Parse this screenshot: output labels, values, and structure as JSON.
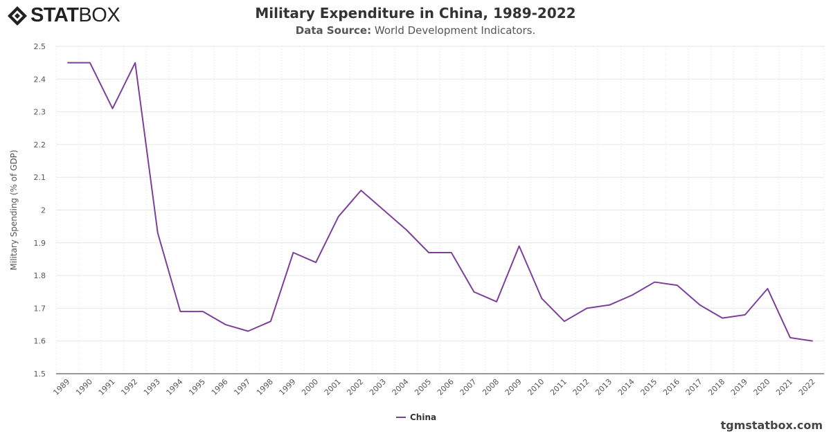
{
  "brand": {
    "logo_bold": "STAT",
    "logo_light": "BOX"
  },
  "header": {
    "title": "Military Expenditure in China, 1989-2022",
    "source_label": "Data Source:",
    "source_value": " World Development Indicators."
  },
  "footer": {
    "site": "tgmstatbox.com"
  },
  "chart_data": {
    "type": "line",
    "title": "Military Expenditure in China, 1989-2022",
    "xlabel": "",
    "ylabel": "Military Spending (% of GDP)",
    "ylim": [
      1.5,
      2.5
    ],
    "yticks": [
      "1.5",
      "1.6",
      "1.7",
      "1.8",
      "1.9",
      "2",
      "2.1",
      "2.2",
      "2.3",
      "2.4",
      "2.5"
    ],
    "grid": true,
    "legend": "bottom-center",
    "categories": [
      "1989",
      "1990",
      "1991",
      "1992",
      "1993",
      "1994",
      "1995",
      "1996",
      "1997",
      "1998",
      "1999",
      "2000",
      "2001",
      "2002",
      "2003",
      "2004",
      "2005",
      "2006",
      "2007",
      "2008",
      "2009",
      "2010",
      "2011",
      "2012",
      "2013",
      "2014",
      "2015",
      "2016",
      "2017",
      "2018",
      "2019",
      "2020",
      "2021",
      "2022"
    ],
    "series": [
      {
        "name": "China",
        "color": "#7b3f99",
        "values": [
          2.45,
          2.45,
          2.31,
          2.45,
          1.93,
          1.69,
          1.69,
          1.65,
          1.63,
          1.66,
          1.87,
          1.84,
          1.98,
          2.06,
          2.0,
          1.94,
          1.87,
          1.87,
          1.75,
          1.72,
          1.89,
          1.73,
          1.66,
          1.7,
          1.71,
          1.74,
          1.78,
          1.77,
          1.71,
          1.67,
          1.68,
          1.76,
          1.61,
          1.6
        ]
      }
    ]
  }
}
